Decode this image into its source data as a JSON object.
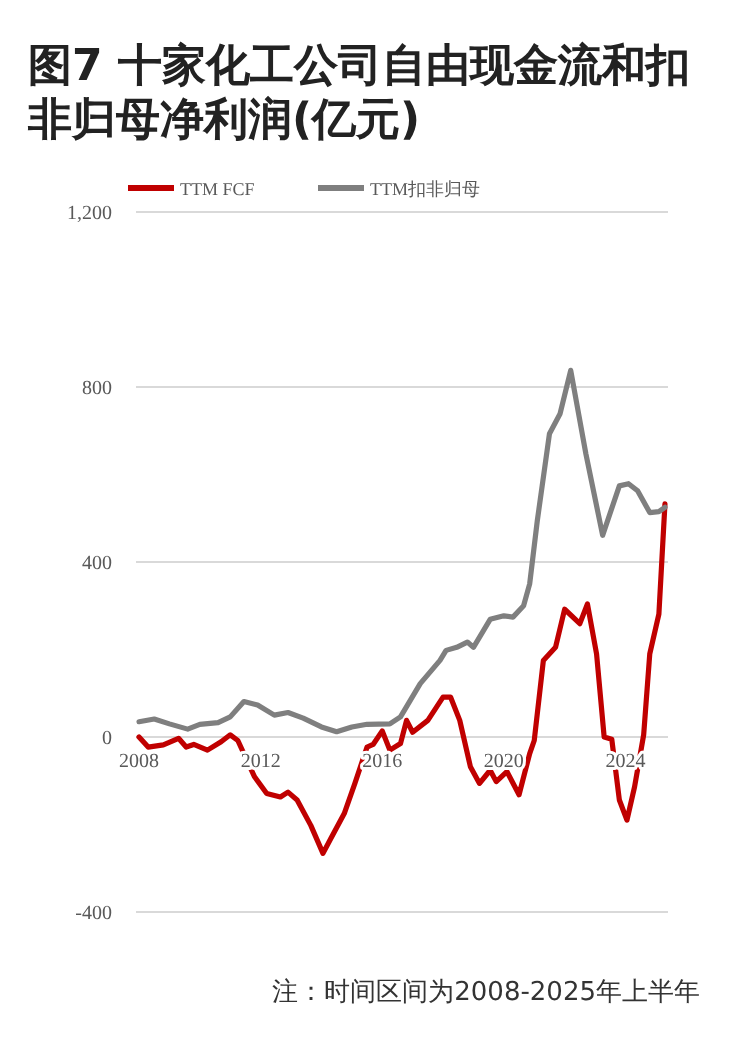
{
  "chart_data": {
    "type": "line",
    "title": "图7 十家化工公司自由现金流和扣非归母净利润(亿元)",
    "annotations": [
      "注：时间区间为2008-2025年上半年"
    ],
    "legend": "top",
    "grid": "y",
    "line_style": "solid",
    "xlim": [
      2007.9,
      2025.4
    ],
    "xticks": [
      2008,
      2012,
      2016,
      2020,
      2024
    ],
    "ylim": [
      -400,
      1200
    ],
    "yticks": [
      -400,
      0,
      400,
      800,
      {
        "value": 1200,
        "label": "1,200"
      }
    ],
    "series": [
      {
        "name": "TTM FCF",
        "color": "#c00000",
        "x": [
          2008.0,
          2008.3,
          2008.8,
          2009.3,
          2009.55,
          2009.8,
          2010.25,
          2010.7,
          2011.0,
          2011.25,
          2011.8,
          2012.2,
          2012.65,
          2012.9,
          2013.2,
          2013.65,
          2014.05,
          2014.3,
          2014.75,
          2015.1,
          2015.5,
          2015.7,
          2016.0,
          2016.25,
          2016.6,
          2016.8,
          2017.0,
          2017.5,
          2018.0,
          2018.25,
          2018.55,
          2018.9,
          2019.2,
          2019.55,
          2019.75,
          2020.1,
          2020.5,
          2020.85,
          2021.0,
          2021.3,
          2021.7,
          2022.0,
          2022.5,
          2022.75,
          2023.05,
          2023.3,
          2023.55,
          2023.8,
          2024.05,
          2024.3,
          2024.6,
          2024.8,
          2025.1,
          2025.3
        ],
        "values": [
          0,
          -23,
          -18,
          -3,
          -23,
          -17,
          -30,
          -11,
          5,
          -8,
          -91,
          -129,
          -137,
          -126,
          -144,
          -202,
          -266,
          -233,
          -175,
          -106,
          -23,
          -17,
          14,
          -30,
          -15,
          38,
          11,
          38,
          91,
          91,
          38,
          -68,
          -106,
          -76,
          -102,
          -79,
          -132,
          -38,
          -8,
          175,
          205,
          292,
          259,
          304,
          190,
          0,
          -5,
          -144,
          -190,
          -114,
          5,
          190,
          281,
          533
        ]
      },
      {
        "name": "TTM扣非归母",
        "color": "#7f7f7f",
        "x": [
          2008.0,
          2008.5,
          2009.0,
          2009.6,
          2010.0,
          2010.6,
          2011.0,
          2011.45,
          2011.9,
          2012.45,
          2012.9,
          2013.4,
          2014.0,
          2014.5,
          2015.0,
          2015.5,
          2016.25,
          2016.6,
          2017.25,
          2017.9,
          2018.1,
          2018.45,
          2018.8,
          2019.0,
          2019.55,
          2020.0,
          2020.3,
          2020.65,
          2020.85,
          2021.1,
          2021.5,
          2021.85,
          2022.2,
          2022.7,
          2023.25,
          2023.8,
          2024.1,
          2024.4,
          2024.8,
          2025.1,
          2025.3
        ],
        "values": [
          35,
          41,
          30,
          18,
          29,
          33,
          46,
          81,
          73,
          50,
          56,
          43,
          23,
          12,
          23,
          29,
          30,
          46,
          122,
          175,
          198,
          205,
          217,
          205,
          269,
          277,
          274,
          300,
          350,
          494,
          693,
          739,
          838,
          647,
          461,
          574,
          579,
          563,
          513,
          515,
          525
        ]
      }
    ]
  }
}
